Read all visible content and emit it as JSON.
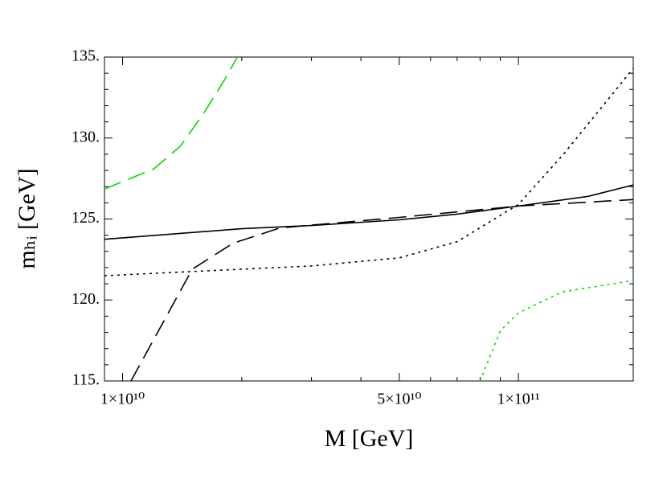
{
  "chart_data": {
    "type": "line",
    "xlabel": "M [GeV]",
    "ylabel": "mₕᵢ [GeV]",
    "xscale": "log",
    "xlim": [
      9000000000,
      195000000000
    ],
    "ylim": [
      115,
      135
    ],
    "xticks": [
      {
        "value": 10000000000,
        "label": "1×10¹⁰"
      },
      {
        "value": 50000000000,
        "label": "5×10¹⁰"
      },
      {
        "value": 100000000000,
        "label": "1×10¹¹"
      }
    ],
    "xminorticks": [
      20000000000,
      30000000000,
      40000000000,
      60000000000,
      70000000000,
      80000000000,
      90000000000,
      200000000000
    ],
    "yticks": [
      {
        "value": 115,
        "label": "115."
      },
      {
        "value": 120,
        "label": "120."
      },
      {
        "value": 125,
        "label": "125."
      },
      {
        "value": 130,
        "label": "130."
      },
      {
        "value": 135,
        "label": "135."
      }
    ],
    "yminorticks": [
      116,
      117,
      118,
      119,
      121,
      122,
      123,
      124,
      126,
      127,
      128,
      129,
      131,
      132,
      133,
      134
    ],
    "series": [
      {
        "color": "#000000",
        "style": "solid",
        "x": [
          9000000000,
          20000000000,
          30000000000,
          50000000000,
          70000000000,
          100000000000,
          150000000000,
          195000000000
        ],
        "values": [
          123.75,
          124.4,
          124.6,
          124.95,
          125.3,
          125.8,
          126.4,
          127.1
        ]
      },
      {
        "color": "#000000",
        "style": "dotted",
        "x": [
          9000000000,
          20000000000,
          30000000000,
          50000000000,
          70000000000,
          100000000000,
          130000000000,
          195000000000
        ],
        "values": [
          121.5,
          121.9,
          122.1,
          122.6,
          123.6,
          125.9,
          129,
          134.3
        ]
      },
      {
        "color": "#000000",
        "style": "dashed",
        "x": [
          10500000000,
          15000000000,
          19000000000,
          25000000000,
          50000000000,
          100000000000,
          195000000000
        ],
        "values": [
          115,
          121.9,
          123.5,
          124.45,
          125.1,
          125.8,
          126.2
        ]
      },
      {
        "color": "#00dd00",
        "style": "dashed",
        "x": [
          9000000000,
          12000000000,
          14000000000,
          16000000000,
          18000000000,
          19500000000
        ],
        "values": [
          126.85,
          128.1,
          129.5,
          131.5,
          133.5,
          135
        ]
      },
      {
        "color": "#00dd00",
        "style": "dotted",
        "x": [
          80000000000,
          90000000000,
          100000000000,
          129000000000,
          195000000000
        ],
        "values": [
          115,
          118.1,
          119.2,
          120.5,
          121.2
        ]
      }
    ]
  }
}
